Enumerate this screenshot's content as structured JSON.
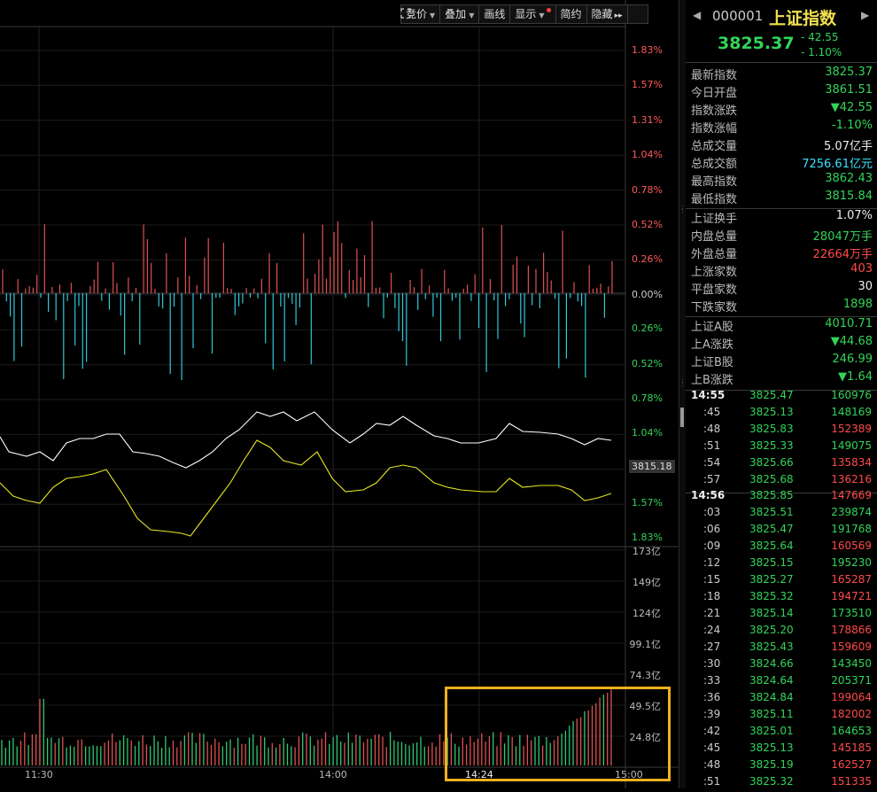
{
  "toolbar": {
    "items": [
      {
        "label": "竞价",
        "dropdown": true
      },
      {
        "label": "叠加",
        "dropdown": true
      },
      {
        "label": "画线",
        "dropdown": false
      },
      {
        "label": "显示",
        "dropdown": true,
        "dot": true
      },
      {
        "label": "简约",
        "dropdown": false
      },
      {
        "label": "隐藏",
        "dropdown": false,
        "suffix": "▸▸"
      }
    ],
    "fullscreen_icon": "expand-icon"
  },
  "axis": {
    "pct_labels_up": [
      "1.83%",
      "1.57%",
      "1.31%",
      "1.04%",
      "0.78%",
      "0.52%",
      "0.26%",
      "0.00%"
    ],
    "pct_labels_down": [
      "0.26%",
      "0.52%",
      "0.78%",
      "1.04%",
      "1.57%",
      "1.83%"
    ],
    "price_tag": "3815.18",
    "volume_labels": [
      "173亿",
      "149亿",
      "124亿",
      "99.1亿",
      "74.3亿",
      "49.5亿",
      "24.8亿"
    ],
    "time_labels": [
      "11:30",
      "14:00",
      "14:24",
      "15:00"
    ]
  },
  "header": {
    "code": "000001",
    "name": "上证指数",
    "price": "3825.37",
    "change": "- 42.55",
    "change_pct": "- 1.10%"
  },
  "stats": [
    {
      "label": "最新指数",
      "value": "3825.37",
      "color": "green"
    },
    {
      "label": "今日开盘",
      "value": "3861.51",
      "color": "green"
    },
    {
      "label": "指数涨跌",
      "value": "▼42.55",
      "color": "green"
    },
    {
      "label": "指数涨幅",
      "value": "-1.10%",
      "color": "green"
    },
    {
      "label": "总成交量",
      "value": "5.07",
      "unit": "亿手",
      "color": "white"
    },
    {
      "label": "总成交额",
      "value": "7256.61",
      "unit": "亿元",
      "color": "cyan"
    },
    {
      "label": "最高指数",
      "value": "3862.43",
      "color": "green"
    },
    {
      "label": "最低指数",
      "value": "3815.84",
      "color": "green"
    },
    {
      "label": "上证换手",
      "value": "1.07%",
      "color": "white"
    },
    {
      "label": "内盘总量",
      "value": "28047",
      "unit": "万手",
      "color": "green"
    },
    {
      "label": "外盘总量",
      "value": "22664",
      "unit": "万手",
      "color": "red"
    },
    {
      "label": "上涨家数",
      "value": "403",
      "color": "red"
    },
    {
      "label": "平盘家数",
      "value": "30",
      "color": "white"
    },
    {
      "label": "下跌家数",
      "value": "1898",
      "color": "green"
    },
    {
      "label": "上证A股",
      "value": "4010.71",
      "color": "green"
    },
    {
      "label": "上A涨跌",
      "value": "▼44.68",
      "color": "green"
    },
    {
      "label": "上证B股",
      "value": "246.99",
      "color": "green"
    },
    {
      "label": "上B涨跌",
      "value": "▼1.64",
      "color": "green"
    }
  ],
  "ticks_group1": [
    {
      "time": "14:55",
      "price": "3825.47",
      "vol": "160976",
      "vc": "green"
    },
    {
      "time": ":45",
      "price": "3825.13",
      "vol": "148169",
      "vc": "green"
    },
    {
      "time": ":48",
      "price": "3825.83",
      "vol": "152389",
      "vc": "red"
    },
    {
      "time": ":51",
      "price": "3825.33",
      "vol": "149075",
      "vc": "green"
    },
    {
      "time": ":54",
      "price": "3825.66",
      "vol": "135834",
      "vc": "red"
    },
    {
      "time": ":57",
      "price": "3825.68",
      "vol": "136216",
      "vc": "red"
    }
  ],
  "ticks_group2": [
    {
      "time": "14:56",
      "price": "3825.85",
      "vol": "147669",
      "vc": "red"
    },
    {
      "time": ":03",
      "price": "3825.51",
      "vol": "239874",
      "vc": "green"
    },
    {
      "time": ":06",
      "price": "3825.47",
      "vol": "191768",
      "vc": "green"
    },
    {
      "time": ":09",
      "price": "3825.64",
      "vol": "160569",
      "vc": "red"
    },
    {
      "time": ":12",
      "price": "3825.15",
      "vol": "195230",
      "vc": "green"
    },
    {
      "time": ":15",
      "price": "3825.27",
      "vol": "165287",
      "vc": "red"
    },
    {
      "time": ":18",
      "price": "3825.32",
      "vol": "194721",
      "vc": "red"
    },
    {
      "time": ":21",
      "price": "3825.14",
      "vol": "173510",
      "vc": "green"
    },
    {
      "time": ":24",
      "price": "3825.20",
      "vol": "178866",
      "vc": "red"
    },
    {
      "time": ":27",
      "price": "3825.43",
      "vol": "159609",
      "vc": "red"
    },
    {
      "time": ":30",
      "price": "3824.66",
      "vol": "143450",
      "vc": "green"
    },
    {
      "time": ":33",
      "price": "3824.64",
      "vol": "205371",
      "vc": "green"
    },
    {
      "time": ":36",
      "price": "3824.84",
      "vol": "199064",
      "vc": "red"
    },
    {
      "time": ":39",
      "price": "3825.11",
      "vol": "182002",
      "vc": "red"
    },
    {
      "time": ":42",
      "price": "3825.01",
      "vol": "164653",
      "vc": "green"
    },
    {
      "time": ":45",
      "price": "3825.13",
      "vol": "145185",
      "vc": "red"
    },
    {
      "time": ":48",
      "price": "3825.19",
      "vol": "162527",
      "vc": "red"
    },
    {
      "time": ":51",
      "price": "3825.32",
      "vol": "151335",
      "vc": "red"
    }
  ]
}
